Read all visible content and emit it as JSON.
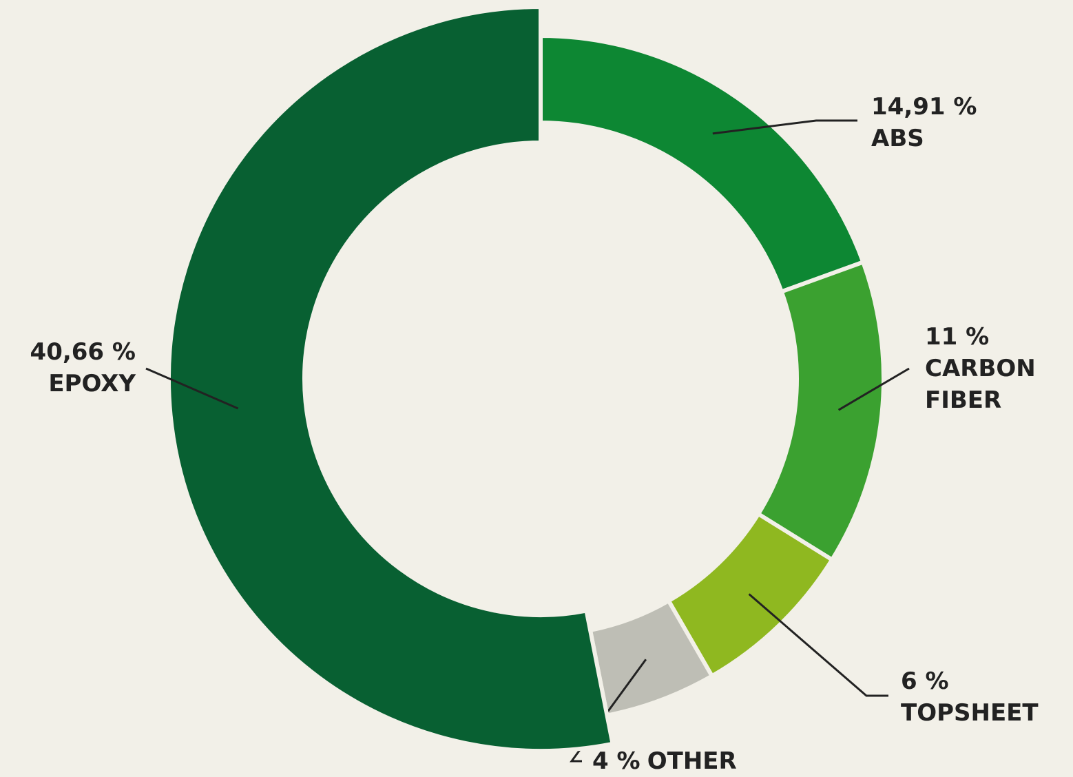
{
  "chart_data": {
    "type": "donut",
    "categories": [
      "ABS",
      "CARBON FIBER",
      "TOPSHEET",
      "OTHER",
      "EPOXY"
    ],
    "values": [
      14.91,
      11,
      6,
      4,
      40.66
    ],
    "value_labels": [
      "14,91 %",
      "11 %",
      "6 %",
      "4 %",
      "40,66 %"
    ],
    "colors": [
      "#0d8733",
      "#3ba130",
      "#8fb820",
      "#bebeb5",
      "#086032"
    ]
  }
}
